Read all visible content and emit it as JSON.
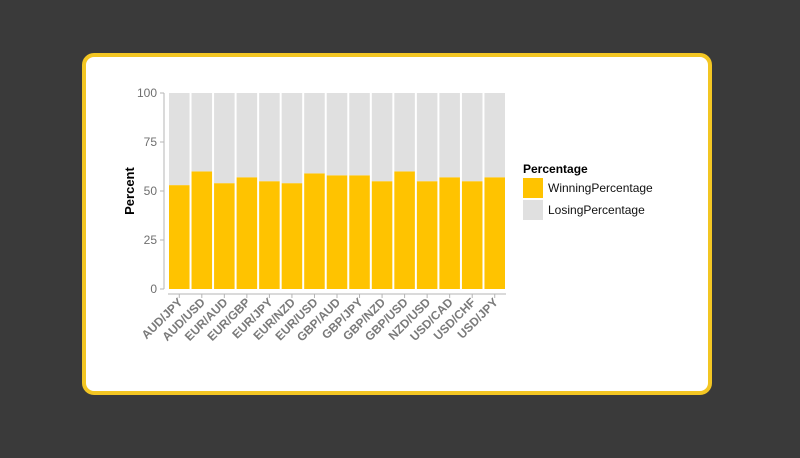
{
  "chart_data": {
    "type": "bar",
    "stacked": true,
    "ylabel": "Percent",
    "ylim": [
      0,
      100
    ],
    "yticks": [
      0,
      25,
      50,
      75,
      100
    ],
    "categories": [
      "AUD/JPY",
      "AUD/USD",
      "EUR/AUD",
      "EUR/GBP",
      "EUR/JPY",
      "EUR/NZD",
      "EUR/USD",
      "GBP/AUD",
      "GBP/JPY",
      "GBP/NZD",
      "GBP/USD",
      "NZD/USD",
      "USD/CAD",
      "USD/CHF",
      "USD/JPY"
    ],
    "series": [
      {
        "name": "WinningPercentage",
        "color": "#ffc300",
        "values": [
          53,
          60,
          54,
          57,
          55,
          54,
          59,
          58,
          58,
          55,
          60,
          55,
          57,
          55,
          57
        ]
      },
      {
        "name": "LosingPercentage",
        "color": "#e0e0e0",
        "values": [
          47,
          40,
          46,
          43,
          45,
          46,
          41,
          42,
          42,
          45,
          40,
          45,
          43,
          45,
          43
        ]
      }
    ],
    "legend": {
      "title": "Percentage",
      "position": "right"
    }
  },
  "colors": {
    "card_border": "#f3c623",
    "background": "#3a3a3a"
  }
}
